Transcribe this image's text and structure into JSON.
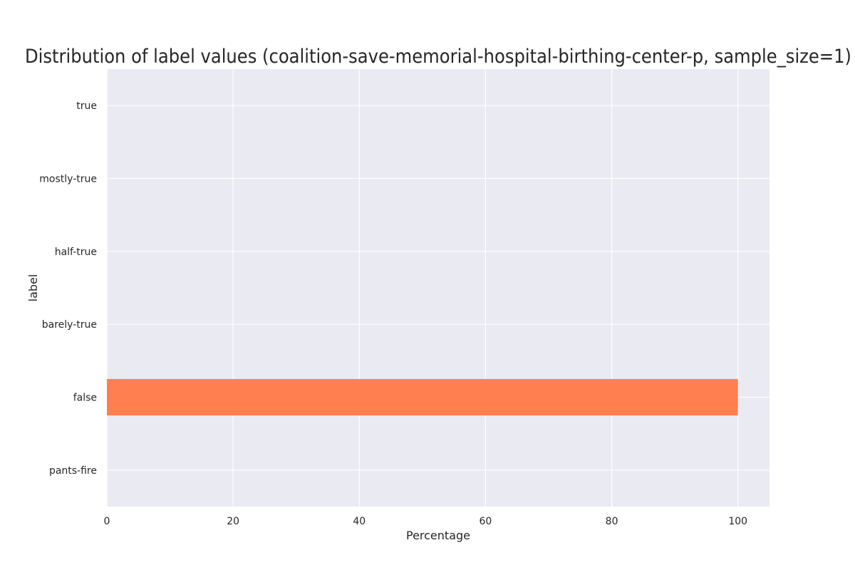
{
  "chart_data": {
    "type": "bar",
    "orientation": "horizontal",
    "title": "Distribution of label values (coalition-save-memorial-hospital-birthing-center-p, sample_size=1)",
    "xlabel": "Percentage",
    "ylabel": "label",
    "categories": [
      "pants-fire",
      "false",
      "barely-true",
      "half-true",
      "mostly-true",
      "true"
    ],
    "values": [
      0,
      100,
      0,
      0,
      0,
      0
    ],
    "xlim": [
      0,
      105
    ],
    "xticks": [
      0,
      20,
      40,
      60,
      80,
      100
    ],
    "grid": true,
    "colors": {
      "bar": "#ff7f50",
      "plot_background": "#eaeaf2",
      "grid": "#ffffff",
      "text": "#262626"
    }
  }
}
